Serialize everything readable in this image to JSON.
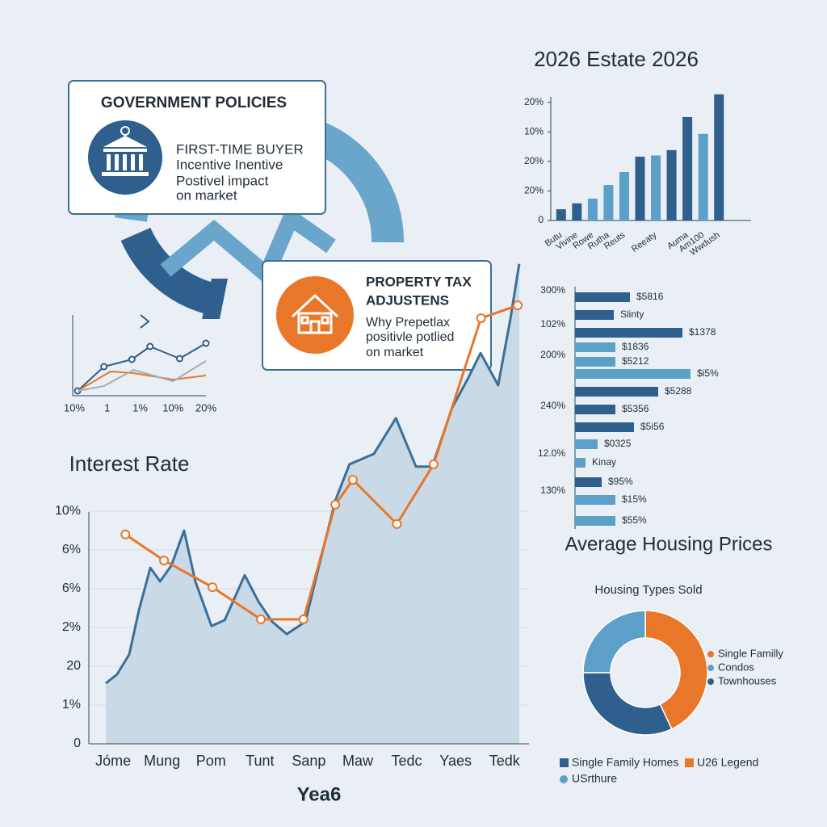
{
  "callouts": [
    {
      "title": "GOVERNMENT POLICIES",
      "lines": [
        "FIRST-TIME BUYER",
        "Incentive Inentive",
        "Postivel impact",
        "on market"
      ]
    },
    {
      "lines": [
        "PROPERTY TAX",
        "ADJUSTENS",
        "Why Prepetlax",
        "positivle potlied",
        "on market"
      ]
    }
  ],
  "chart_data": [
    {
      "type": "bar",
      "title": "2026 Estate 2026",
      "categories": [
        "Butu",
        "Vivine",
        "Rowe",
        "Rutha",
        "Reuts",
        null,
        "Reeaty",
        null,
        "Auma",
        "Am100",
        "Wwdush"
      ],
      "values": [
        3.8,
        5.8,
        7.4,
        12,
        16.4,
        21.6,
        22,
        23.8,
        35,
        29.3,
        42.7
      ],
      "colors": [
        "#2f5f8c",
        "#2f5f8c",
        "#5c9fc9",
        "#5c9fc9",
        "#5c9fc9",
        "#2f5f8c",
        "#5c9fc9",
        "#2f5f8c",
        "#2f5f8c",
        "#5c9fc9",
        "#2f5f8c"
      ],
      "ylim": [
        0,
        44
      ],
      "yticks": [
        0,
        {
          "value": 10,
          "label": "20%"
        },
        {
          "value": 20,
          "label": "20%"
        },
        {
          "value": 30,
          "label": "10%"
        },
        {
          "value": 40,
          "label": "20%"
        }
      ]
    },
    {
      "type": "line",
      "title": "Interest Rate",
      "xlabel": "Yea6",
      "grid": true,
      "xlim": [
        -0.15,
        8.5
      ],
      "xticks": [
        {
          "value": 0,
          "label": "Jóme"
        },
        {
          "value": 1,
          "label": "Mung"
        },
        {
          "value": 2,
          "label": "Pom"
        },
        {
          "value": 3,
          "label": "Tunt"
        },
        {
          "value": 4,
          "label": "Sanp"
        },
        {
          "value": 5,
          "label": "Maw"
        },
        {
          "value": 6,
          "label": "Tedc"
        },
        {
          "value": 7,
          "label": "Yaes"
        },
        {
          "value": 8,
          "label": "Tedk"
        }
      ],
      "ylim": [
        0,
        12.5
      ],
      "yticks": [
        0,
        {
          "value": 1,
          "label": "1%"
        },
        {
          "value": 2,
          "label": "20"
        },
        {
          "value": 3,
          "label": "2%"
        },
        {
          "value": 4,
          "label": "6%"
        },
        {
          "value": 5,
          "label": "6%"
        },
        {
          "value": 6,
          "label": "10%"
        }
      ],
      "series": [
        {
          "color": "#3a6f99",
          "fill": "#c9d9e6",
          "x": [
            -0.15,
            0.08,
            0.33,
            0.53,
            0.76,
            0.96,
            1.19,
            1.45,
            1.68,
            2.01,
            2.28,
            2.69,
            2.97,
            3.25,
            3.55,
            3.93,
            4.21,
            4.54,
            4.83,
            5.33,
            5.78,
            6.19,
            6.52,
            6.93,
            7.26,
            7.51,
            7.87,
            8.12,
            8.3
          ],
          "values": [
            1.56,
            1.79,
            2.31,
            3.46,
            4.54,
            4.19,
            4.6,
            5.5,
            4.19,
            3.04,
            3.19,
            4.35,
            3.67,
            3.15,
            2.83,
            3.15,
            4.6,
            6.27,
            7.21,
            7.48,
            8.4,
            7.15,
            7.15,
            8.67,
            9.44,
            10.08,
            9.25,
            10.96,
            12.38
          ]
        },
        {
          "color": "#e8772a",
          "markers": true,
          "x": [
            0.25,
            1.04,
            2.03,
            3.02,
            3.89,
            4.54,
            4.9,
            5.8,
            6.55,
            7.52,
            8.27
          ],
          "values": [
            5.4,
            4.73,
            4.04,
            3.21,
            3.21,
            6.17,
            6.81,
            5.67,
            7.21,
            10.98,
            11.31
          ]
        }
      ]
    },
    {
      "type": "line",
      "xlim": [
        0,
        4
      ],
      "xticks": [
        {
          "value": 0,
          "label": "10%"
        },
        1,
        {
          "value": 2,
          "label": "1%"
        },
        {
          "value": 3,
          "label": "10%"
        },
        {
          "value": 4,
          "label": "20%"
        }
      ],
      "ylim": [
        0,
        10
      ],
      "series": [
        {
          "color": "#2f5f8c",
          "markers": true,
          "x": [
            0.1,
            0.9,
            1.75,
            2.3,
            3.2,
            4
          ],
          "values": [
            0.6,
            3.6,
            4.5,
            6.1,
            4.6,
            6.5
          ]
        },
        {
          "color": "#e8772a",
          "x": [
            0.1,
            1.1,
            1.8,
            3,
            4
          ],
          "values": [
            0.6,
            3,
            2.8,
            2,
            2.5
          ]
        },
        {
          "color": "#a3adb6",
          "x": [
            0.1,
            0.9,
            1.8,
            3,
            4
          ],
          "values": [
            0.6,
            1.2,
            3.2,
            1.8,
            4.3
          ]
        }
      ]
    },
    {
      "type": "bar",
      "horizontal": true,
      "title": "Average Housing Prices",
      "xlim": [
        0,
        150
      ],
      "values": [
        68,
        48,
        133,
        50,
        50,
        143,
        103,
        50,
        73,
        28,
        13,
        33,
        50,
        50
      ],
      "bar_labels": [
        "$5816",
        "Slinty",
        "$1378",
        "$1836",
        "$5212",
        "$i5%",
        "$5288",
        "$5356",
        "$5i56",
        "$0325",
        "Kinay",
        "$95%",
        "$15%",
        "$55%"
      ],
      "colors": [
        "#2f5f8c",
        "#2f5f8c",
        "#2f5f8c",
        "#5c9fc9",
        "#5c9fc9",
        "#5c9fc9",
        "#2f5f8c",
        "#2f5f8c",
        "#2f5f8c",
        "#5c9fc9",
        "#5c9fc9",
        "#2f5f8c",
        "#5c9fc9",
        "#5c9fc9"
      ],
      "side_labels": [
        "300%",
        "102%",
        "200%",
        "240%",
        "12.0%",
        "130%"
      ]
    },
    {
      "type": "pie",
      "donut": true,
      "title": "Housing Types Sold",
      "categories": [
        "Single Familly",
        "Condos",
        "Townhouses"
      ],
      "values": [
        43,
        25,
        32
      ],
      "colors": [
        "#e8772a",
        "#5c9fc9",
        "#2f5f8c"
      ]
    }
  ],
  "legend_items": [
    {
      "label": "Single Family Homes",
      "color": "#2f5f8c",
      "shape": "square"
    },
    {
      "label": "U26 Legend",
      "color": "#e8772a",
      "shape": "square"
    },
    {
      "label": "USrthure",
      "color": "#5c9fc9",
      "shape": "circle"
    }
  ]
}
